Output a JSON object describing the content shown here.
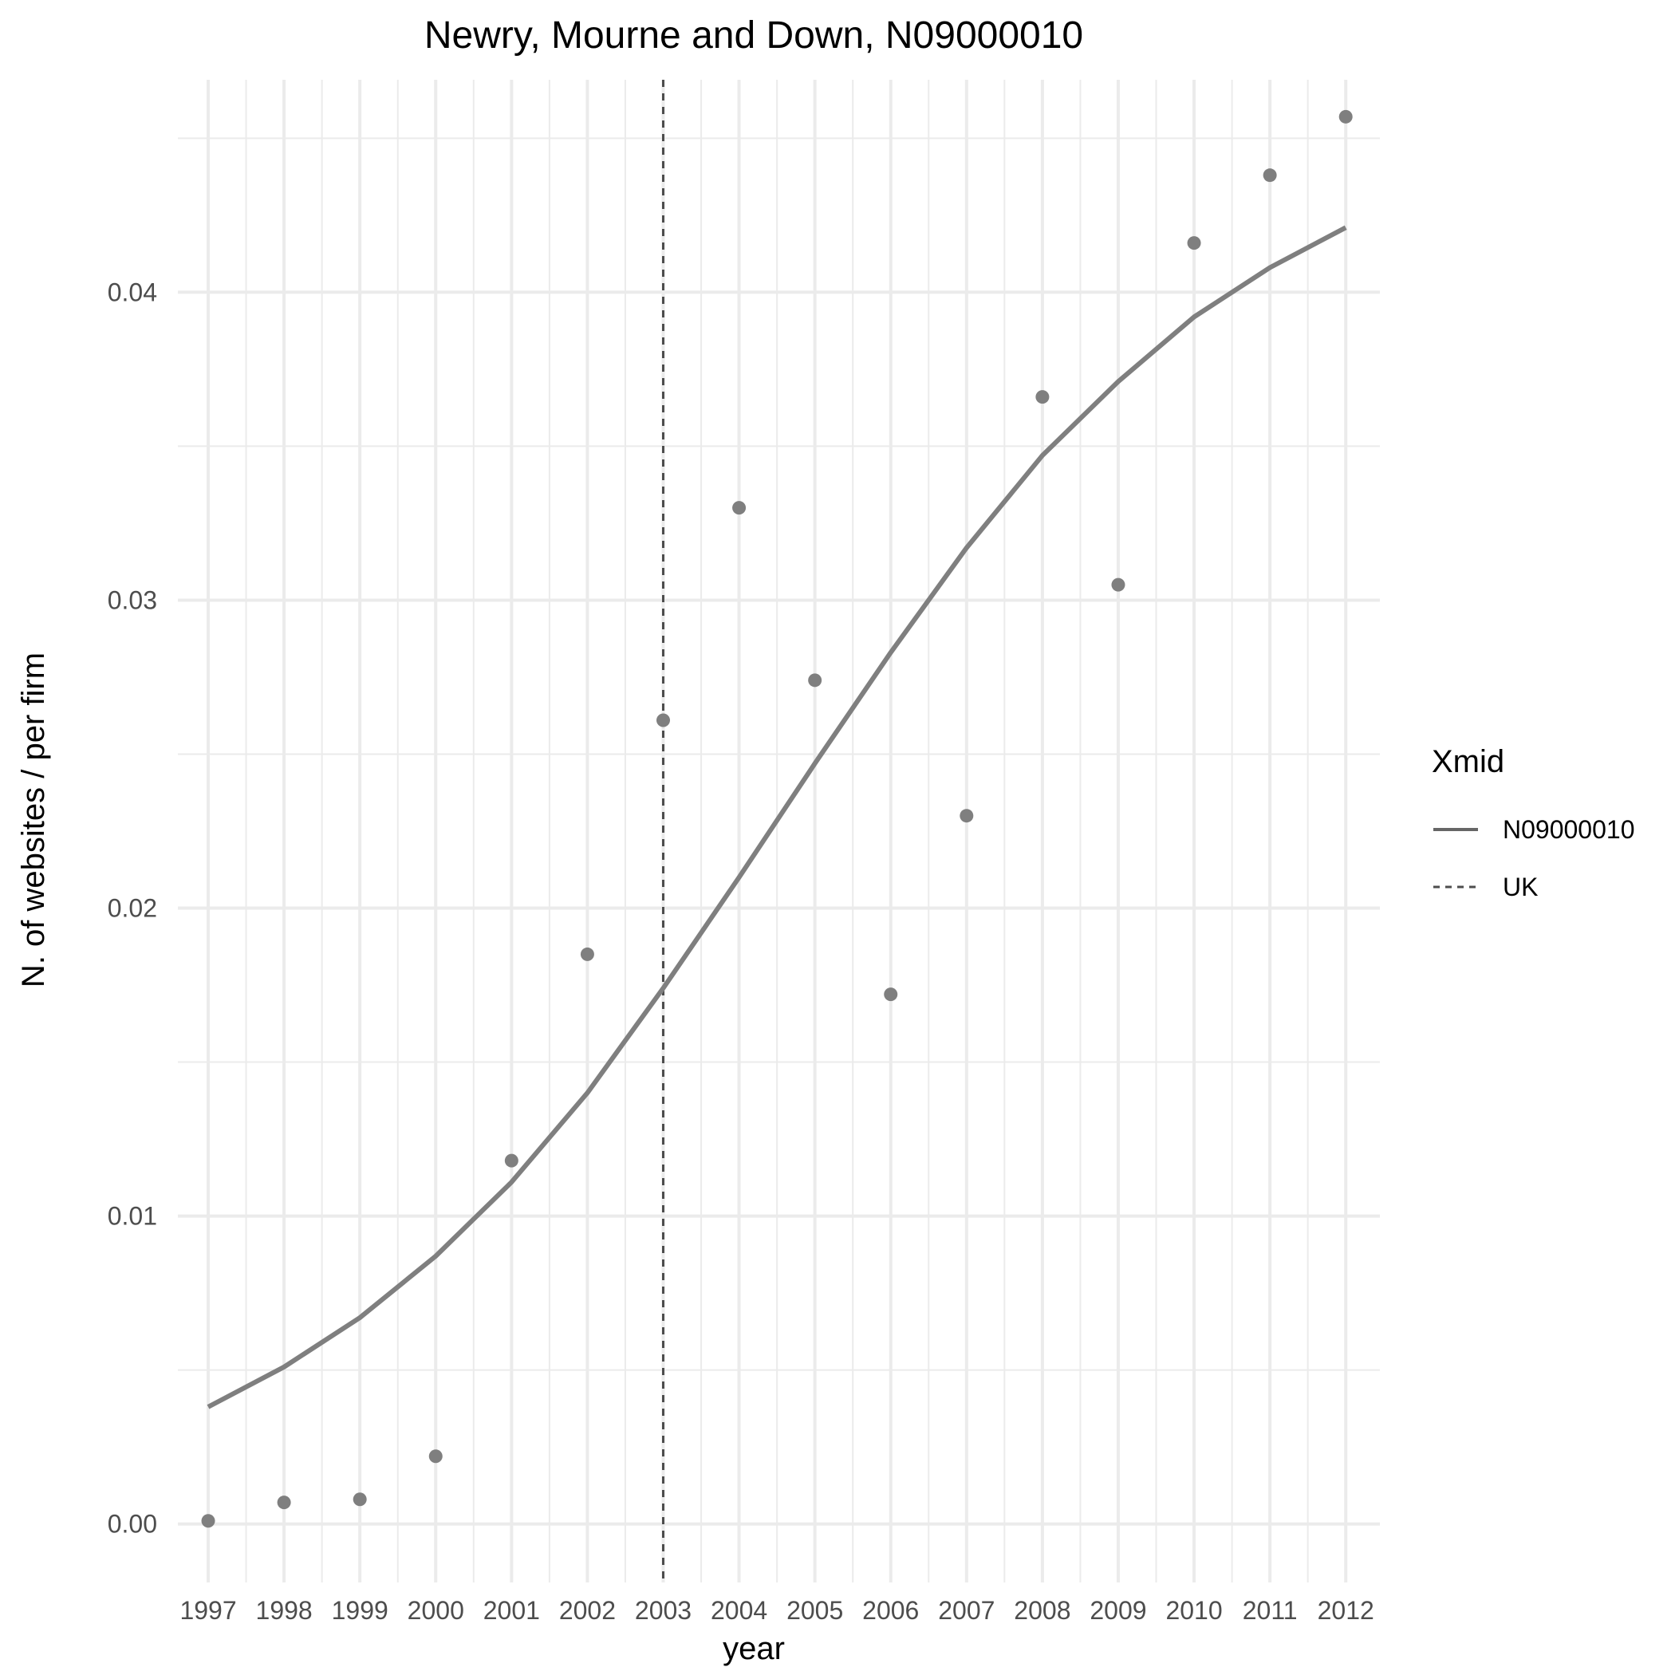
{
  "chart_data": {
    "type": "scatter",
    "title": "Newry, Mourne and Down, N09000010",
    "xlabel": "year",
    "ylabel": "N. of websites / per firm",
    "x": [
      1997,
      1998,
      1999,
      2000,
      2001,
      2002,
      2003,
      2004,
      2005,
      2006,
      2007,
      2008,
      2009,
      2010,
      2011,
      2012
    ],
    "x_ticks": [
      "1997",
      "1998",
      "1999",
      "2000",
      "2001",
      "2002",
      "2003",
      "2004",
      "2005",
      "2006",
      "2007",
      "2008",
      "2009",
      "2010",
      "2011",
      "2012"
    ],
    "y_ticks": [
      "0.00",
      "0.01",
      "0.02",
      "0.03",
      "0.04"
    ],
    "y_tick_values": [
      0.0,
      0.01,
      0.02,
      0.03,
      0.04
    ],
    "xlim": [
      1996.6,
      2012.45
    ],
    "ylim": [
      -0.0019,
      0.0469
    ],
    "grid": true,
    "points": {
      "name": "N09000010",
      "values": [
        0.0001,
        0.0007,
        0.0008,
        0.0022,
        0.0118,
        0.0185,
        0.0261,
        0.033,
        0.0274,
        0.0172,
        0.023,
        0.0366,
        0.0305,
        0.0416,
        0.0438,
        0.0457
      ]
    },
    "series": [
      {
        "name": "N09000010",
        "style": "solid",
        "values": [
          0.0038,
          0.0051,
          0.0067,
          0.0087,
          0.0111,
          0.014,
          0.0174,
          0.021,
          0.0247,
          0.0283,
          0.0317,
          0.0347,
          0.0371,
          0.0392,
          0.0408,
          0.0421
        ]
      }
    ],
    "reference_lines": [
      {
        "name": "UK",
        "style": "dashed",
        "orientation": "vertical",
        "x": 2003
      }
    ],
    "legend": {
      "title": "Xmid",
      "position": "right",
      "entries": [
        {
          "label": "N09000010",
          "style": "solid"
        },
        {
          "label": "UK",
          "style": "dashed"
        }
      ]
    },
    "colors": {
      "line": "#7f7f7f",
      "points": "#7f7f7f",
      "reference_line": "#4d4d4d",
      "grid": "#ebebeb",
      "legend_solid": "#666666",
      "legend_dashed": "#4d4d4d"
    }
  }
}
